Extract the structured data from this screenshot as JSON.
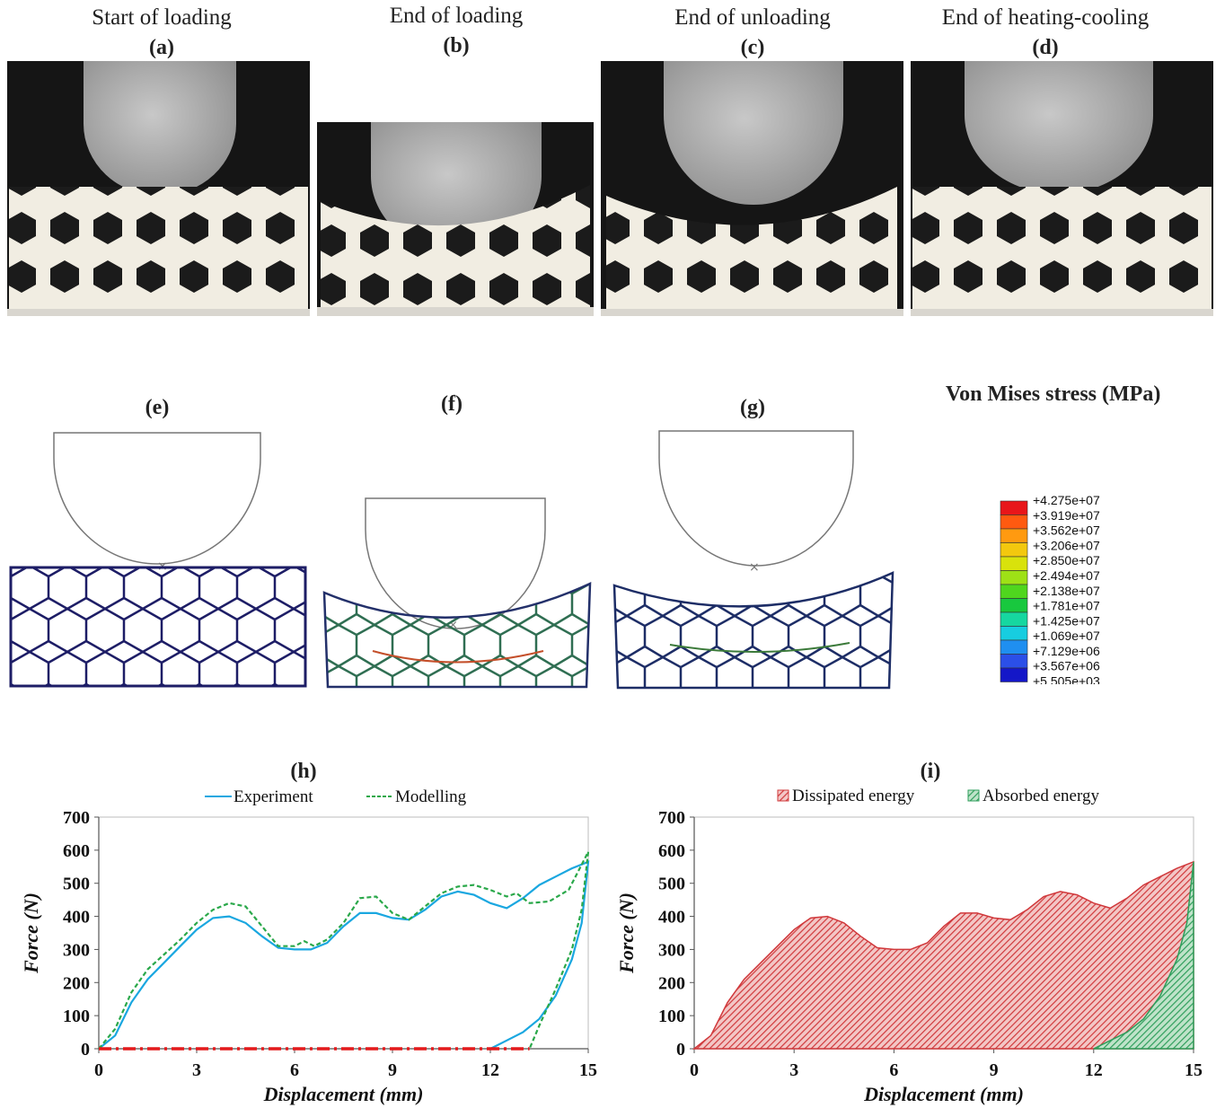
{
  "photos": [
    {
      "caption": "Start of loading",
      "label": "(a)"
    },
    {
      "caption": "End of loading",
      "label": "(b)"
    },
    {
      "caption": "End of unloading",
      "label": "(c)"
    },
    {
      "caption": "End of heating-cooling",
      "label": "(d)"
    }
  ],
  "sims": [
    {
      "label": "(e)"
    },
    {
      "label": "(f)"
    },
    {
      "label": "(g)"
    }
  ],
  "colorbar": {
    "title": "Von Mises stress (MPa)",
    "values": [
      "+4.275e+07",
      "+3.919e+07",
      "+3.562e+07",
      "+3.206e+07",
      "+2.850e+07",
      "+2.494e+07",
      "+2.138e+07",
      "+1.781e+07",
      "+1.425e+07",
      "+1.069e+07",
      "+7.129e+06",
      "+3.567e+06",
      "+5.505e+03"
    ],
    "colors": [
      "#e8161a",
      "#ff5a10",
      "#ff9a10",
      "#f3c80e",
      "#d9e20c",
      "#9ee116",
      "#4fd61e",
      "#18c83e",
      "#16d7a0",
      "#17cde0",
      "#1f8ff0",
      "#2b4fe8",
      "#1417c8"
    ]
  },
  "chart_data": [
    {
      "type": "line",
      "panel": "(h)",
      "title": "",
      "xlabel": "Displacement (mm)",
      "ylabel": "Force (N)",
      "xlim": [
        0,
        15
      ],
      "ylim": [
        0,
        700
      ],
      "xticks": [
        0,
        3,
        6,
        9,
        12,
        15
      ],
      "yticks": [
        0,
        100,
        200,
        300,
        400,
        500,
        600,
        700
      ],
      "grid": false,
      "legend_position": "top",
      "series": [
        {
          "name": "Experiment",
          "color": "#1aa7e0",
          "style": "solid",
          "x": [
            0,
            0.5,
            1.0,
            1.5,
            2.0,
            2.5,
            3.0,
            3.5,
            4.0,
            4.5,
            5.0,
            5.5,
            6.0,
            6.5,
            7.0,
            7.5,
            8.0,
            8.5,
            9.0,
            9.5,
            10.0,
            10.5,
            11.0,
            11.5,
            12.0,
            12.5,
            13.0,
            13.5,
            14.0,
            14.5,
            15.0,
            14.8,
            14.5,
            14.0,
            13.5,
            13.0,
            12.5,
            12.0
          ],
          "y": [
            0,
            40,
            140,
            210,
            260,
            310,
            360,
            395,
            400,
            380,
            340,
            305,
            300,
            300,
            320,
            370,
            410,
            410,
            395,
            390,
            420,
            460,
            475,
            465,
            440,
            425,
            455,
            495,
            520,
            545,
            565,
            380,
            270,
            160,
            90,
            50,
            25,
            0
          ]
        },
        {
          "name": "Modelling",
          "color": "#2aa84a",
          "style": "dashed",
          "x": [
            0,
            0.5,
            1.0,
            1.5,
            2.0,
            2.5,
            3.0,
            3.5,
            4.0,
            4.5,
            5.0,
            5.5,
            6.0,
            6.3,
            6.6,
            7.0,
            7.5,
            8.0,
            8.5,
            9.0,
            9.5,
            10.0,
            10.5,
            11.0,
            11.5,
            12.0,
            12.5,
            12.8,
            13.2,
            13.8,
            14.4,
            15.0,
            14.8,
            14.5,
            14.0,
            13.5,
            13.2
          ],
          "y": [
            0,
            60,
            170,
            240,
            285,
            330,
            380,
            420,
            440,
            430,
            370,
            310,
            310,
            325,
            310,
            330,
            380,
            455,
            460,
            410,
            390,
            430,
            470,
            490,
            495,
            480,
            460,
            470,
            440,
            445,
            480,
            595,
            420,
            300,
            180,
            70,
            0
          ]
        },
        {
          "name": "",
          "color": "#e31a1c",
          "style": "dashdot",
          "x": [
            0,
            13.2
          ],
          "y": [
            0,
            0
          ]
        }
      ]
    },
    {
      "type": "area",
      "panel": "(i)",
      "title": "",
      "xlabel": "Displacement (mm)",
      "ylabel": "Force (N)",
      "xlim": [
        0,
        15
      ],
      "ylim": [
        0,
        700
      ],
      "xticks": [
        0,
        3,
        6,
        9,
        12,
        15
      ],
      "yticks": [
        0,
        100,
        200,
        300,
        400,
        500,
        600,
        700
      ],
      "grid": false,
      "legend_position": "top",
      "series": [
        {
          "name": "Dissipated energy",
          "color": "#d0383b",
          "x": [
            0,
            0.5,
            1.0,
            1.5,
            2.0,
            2.5,
            3.0,
            3.5,
            4.0,
            4.5,
            5.0,
            5.5,
            6.0,
            6.5,
            7.0,
            7.5,
            8.0,
            8.5,
            9.0,
            9.5,
            10.0,
            10.5,
            11.0,
            11.5,
            12.0,
            12.5,
            13.0,
            13.5,
            14.0,
            14.5,
            15.0
          ],
          "y": [
            0,
            40,
            140,
            210,
            260,
            310,
            360,
            395,
            400,
            380,
            340,
            305,
            300,
            300,
            320,
            370,
            410,
            410,
            395,
            390,
            420,
            460,
            475,
            465,
            440,
            425,
            455,
            495,
            520,
            545,
            565
          ]
        },
        {
          "name": "Absorbed energy",
          "color": "#2e9e5b",
          "x": [
            12.0,
            12.5,
            13.0,
            13.5,
            14.0,
            14.5,
            14.8,
            15.0
          ],
          "y": [
            0,
            25,
            50,
            90,
            160,
            270,
            380,
            565
          ]
        }
      ]
    }
  ]
}
